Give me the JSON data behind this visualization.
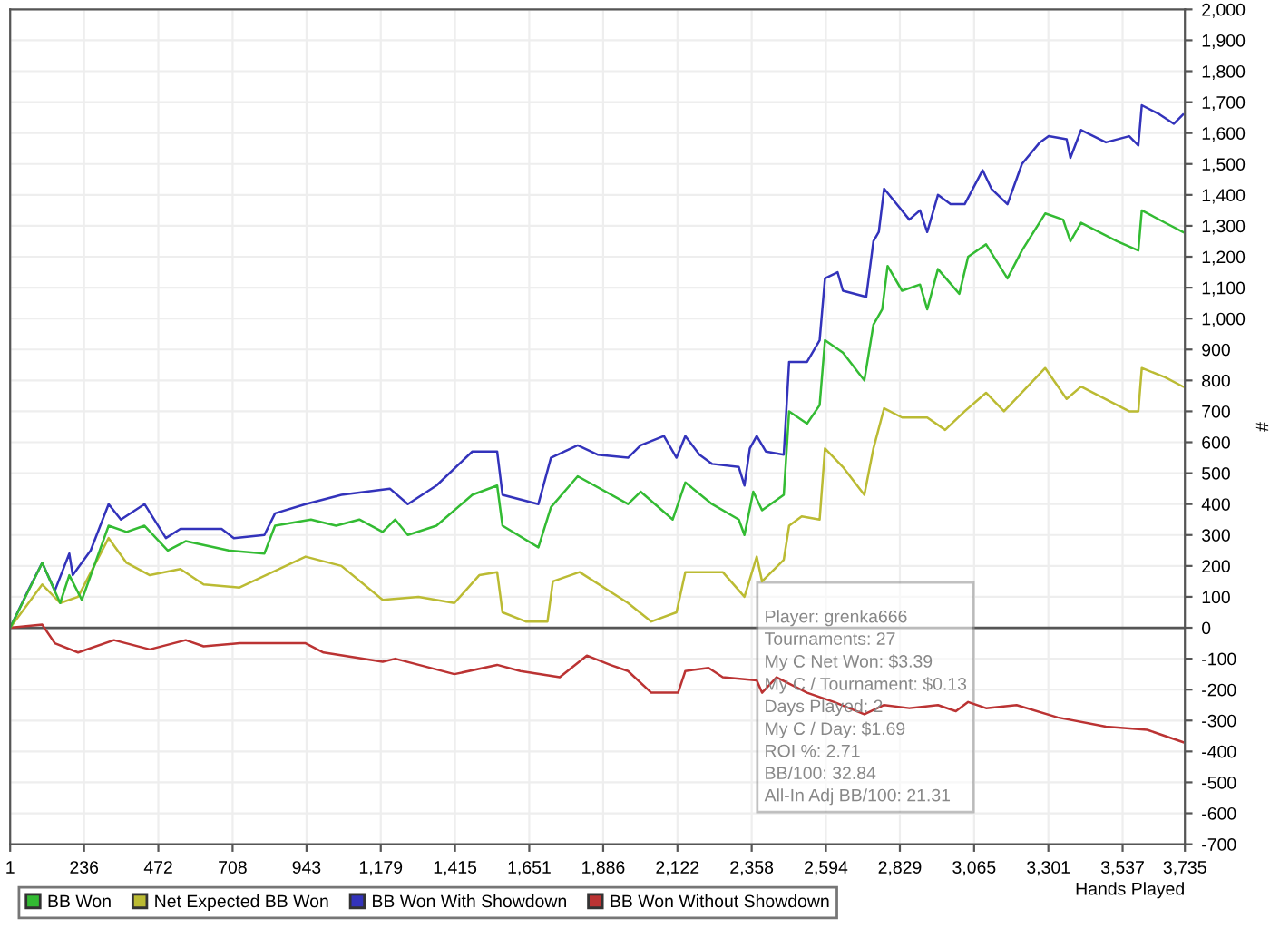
{
  "chart_data": {
    "type": "line",
    "xlabel": "Hands Played",
    "ylabel": "#",
    "xlim": [
      1,
      3735
    ],
    "xticks": [
      1,
      236,
      472,
      708,
      943,
      {
        "value": 1179,
        "label": "1,179"
      },
      {
        "value": 1415,
        "label": "1,415"
      },
      {
        "value": 1651,
        "label": "1,651"
      },
      {
        "value": 1886,
        "label": "1,886"
      },
      {
        "value": 2122,
        "label": "2,122"
      },
      {
        "value": 2358,
        "label": "2,358"
      },
      {
        "value": 2594,
        "label": "2,594"
      },
      {
        "value": 2829,
        "label": "2,829"
      },
      {
        "value": 3065,
        "label": "3,065"
      },
      {
        "value": 3301,
        "label": "3,301"
      },
      {
        "value": 3537,
        "label": "3,537"
      },
      {
        "value": 3735,
        "label": "3,735"
      }
    ],
    "ylim": [
      -700,
      2000
    ],
    "yticks": [
      -700,
      -600,
      -500,
      -400,
      -300,
      -200,
      -100,
      0,
      100,
      200,
      300,
      400,
      500,
      600,
      700,
      800,
      900,
      {
        "value": 1000,
        "label": "1,000"
      },
      {
        "value": 1100,
        "label": "1,100"
      },
      {
        "value": 1200,
        "label": "1,200"
      },
      {
        "value": 1300,
        "label": "1,300"
      },
      {
        "value": 1400,
        "label": "1,400"
      },
      {
        "value": 1500,
        "label": "1,500"
      },
      {
        "value": 1600,
        "label": "1,600"
      },
      {
        "value": 1700,
        "label": "1,700"
      },
      {
        "value": 1800,
        "label": "1,800"
      },
      {
        "value": 1900,
        "label": "1,900"
      },
      {
        "value": 2000,
        "label": "2,000"
      }
    ],
    "grid": true,
    "legend": "bottom",
    "marker": "none",
    "line_style": "solid",
    "ref_lines": [
      {
        "axis": "y",
        "value": 0,
        "color": "#555555"
      }
    ],
    "series": [
      {
        "name": "BB Won",
        "color": "#33bb33",
        "x": [
          1,
          103,
          160,
          189,
          229,
          314,
          371,
          428,
          502,
          559,
          695,
          809,
          843,
          957,
          1037,
          1111,
          1185,
          1225,
          1265,
          1356,
          1470,
          1549,
          1566,
          1680,
          1720,
          1805,
          1965,
          2005,
          2107,
          2147,
          2232,
          2317,
          2335,
          2363,
          2391,
          2460,
          2477,
          2534,
          2574,
          2591,
          2648,
          2716,
          2745,
          2773,
          2790,
          2836,
          2893,
          2916,
          2950,
          3018,
          3046,
          3103,
          3171,
          3217,
          3291,
          3348,
          3371,
          3405,
          3519,
          3587,
          3598,
          3672,
          3729
        ],
        "values": [
          0,
          210,
          80,
          170,
          90,
          330,
          310,
          330,
          250,
          280,
          250,
          240,
          330,
          350,
          330,
          350,
          310,
          350,
          300,
          330,
          430,
          460,
          330,
          260,
          390,
          490,
          400,
          440,
          350,
          470,
          400,
          350,
          300,
          440,
          380,
          430,
          700,
          660,
          720,
          930,
          890,
          800,
          980,
          1030,
          1170,
          1090,
          1110,
          1030,
          1160,
          1080,
          1200,
          1240,
          1130,
          1220,
          1340,
          1320,
          1250,
          1310,
          1250,
          1220,
          1350,
          1310,
          1280
        ]
      },
      {
        "name": "Net Expected BB Won",
        "color": "#bbbb33",
        "x": [
          1,
          103,
          160,
          217,
          314,
          371,
          445,
          542,
          616,
          730,
          940,
          1054,
          1185,
          1299,
          1413,
          1492,
          1549,
          1566,
          1640,
          1709,
          1726,
          1811,
          1965,
          2039,
          2119,
          2147,
          2266,
          2335,
          2374,
          2391,
          2460,
          2477,
          2517,
          2574,
          2591,
          2648,
          2716,
          2745,
          2779,
          2836,
          2916,
          2973,
          3035,
          3103,
          3160,
          3291,
          3359,
          3405,
          3558,
          3587,
          3598,
          3672,
          3729
        ],
        "values": [
          0,
          140,
          80,
          100,
          290,
          210,
          170,
          190,
          140,
          130,
          230,
          200,
          90,
          100,
          80,
          170,
          180,
          50,
          20,
          20,
          150,
          180,
          80,
          20,
          50,
          180,
          180,
          100,
          230,
          150,
          220,
          330,
          360,
          350,
          580,
          520,
          430,
          580,
          710,
          680,
          680,
          640,
          700,
          760,
          700,
          840,
          740,
          780,
          700,
          700,
          840,
          810,
          780
        ]
      },
      {
        "name": "BB Won With Showdown",
        "color": "#3333bb",
        "x": [
          1,
          58,
          103,
          143,
          189,
          200,
          257,
          314,
          353,
          428,
          496,
          542,
          673,
          712,
          809,
          843,
          940,
          1054,
          1208,
          1265,
          1356,
          1470,
          1549,
          1566,
          1680,
          1720,
          1805,
          1868,
          1965,
          2005,
          2079,
          2119,
          2147,
          2192,
          2232,
          2317,
          2335,
          2352,
          2374,
          2403,
          2460,
          2477,
          2534,
          2574,
          2591,
          2631,
          2648,
          2722,
          2745,
          2762,
          2779,
          2819,
          2859,
          2893,
          2916,
          2950,
          2990,
          3035,
          3092,
          3120,
          3171,
          3217,
          3274,
          3302,
          3359,
          3371,
          3405,
          3484,
          3558,
          3587,
          3598,
          3655,
          3700,
          3729
        ],
        "values": [
          0,
          120,
          210,
          120,
          240,
          170,
          250,
          400,
          350,
          400,
          290,
          320,
          320,
          290,
          300,
          370,
          400,
          430,
          450,
          400,
          460,
          570,
          570,
          430,
          400,
          550,
          590,
          560,
          550,
          590,
          620,
          550,
          620,
          560,
          530,
          520,
          460,
          580,
          620,
          570,
          560,
          860,
          860,
          930,
          1130,
          1150,
          1090,
          1070,
          1250,
          1280,
          1420,
          1370,
          1320,
          1350,
          1280,
          1400,
          1370,
          1370,
          1480,
          1420,
          1370,
          1500,
          1570,
          1590,
          1580,
          1520,
          1610,
          1570,
          1590,
          1560,
          1690,
          1660,
          1630,
          1660
        ]
      },
      {
        "name": "BB Won Without Showdown",
        "color": "#bb3333",
        "x": [
          1,
          103,
          143,
          217,
          331,
          445,
          559,
          616,
          730,
          940,
          997,
          1185,
          1225,
          1413,
          1549,
          1623,
          1748,
          1834,
          1908,
          1965,
          2039,
          2124,
          2147,
          2221,
          2266,
          2374,
          2391,
          2437,
          2534,
          2620,
          2716,
          2779,
          2859,
          2950,
          3007,
          3046,
          3103,
          3200,
          3331,
          3484,
          3615,
          3729
        ],
        "values": [
          0,
          10,
          -50,
          -80,
          -40,
          -70,
          -40,
          -60,
          -50,
          -50,
          -80,
          -110,
          -100,
          -150,
          -120,
          -140,
          -160,
          -90,
          -120,
          -140,
          -210,
          -210,
          -140,
          -130,
          -160,
          -170,
          -210,
          -160,
          -210,
          -240,
          -280,
          -250,
          -260,
          -250,
          -270,
          -240,
          -260,
          -250,
          -290,
          -320,
          -330,
          -370
        ]
      }
    ],
    "annotations": [
      "Player: grenka666",
      "Tournaments: 27",
      "My C Net Won: $3.39",
      "My C / Tournament: $0.13",
      "Days Played: 2",
      "My C / Day: $1.69",
      "ROI %: 2.71",
      "BB/100: 32.84",
      "All-In Adj BB/100: 21.31"
    ]
  }
}
